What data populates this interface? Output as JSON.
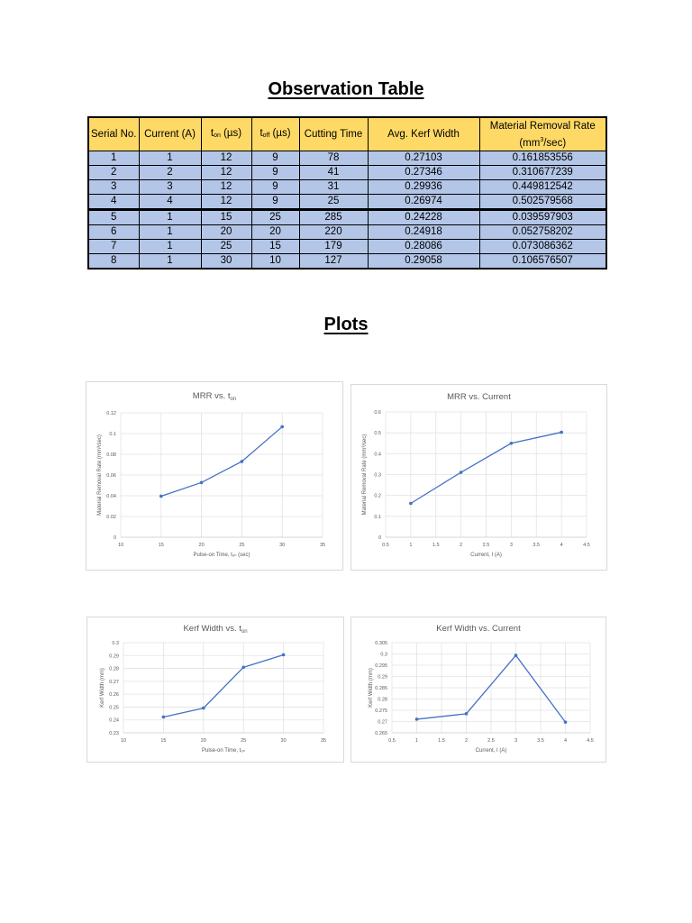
{
  "page": {
    "title": "Observation Table",
    "plots_title": "Plots"
  },
  "table": {
    "headers": [
      {
        "main": "Serial No.",
        "sub": ""
      },
      {
        "main": "Current (A)",
        "sub": ""
      },
      {
        "main": "t",
        "sub": "on",
        "suffix": " (µs)"
      },
      {
        "main": "t",
        "sub": "off",
        "suffix": " (µs)"
      },
      {
        "main": "Cutting Time",
        "sub": ""
      },
      {
        "main": "Avg. Kerf Width",
        "sub": ""
      },
      {
        "main": "Material Removal Rate",
        "line2_pre": "(mm",
        "line2_sup": "3",
        "line2_post": "/sec)"
      }
    ],
    "rows": [
      [
        "1",
        "1",
        "12",
        "9",
        "78",
        "0.27103",
        "0.161853556"
      ],
      [
        "2",
        "2",
        "12",
        "9",
        "41",
        "0.27346",
        "0.310677239"
      ],
      [
        "3",
        "3",
        "12",
        "9",
        "31",
        "0.29936",
        "0.449812542"
      ],
      [
        "4",
        "4",
        "12",
        "9",
        "25",
        "0.26974",
        "0.502579568"
      ],
      [
        "5",
        "1",
        "15",
        "25",
        "285",
        "0.24228",
        "0.039597903"
      ],
      [
        "6",
        "1",
        "20",
        "20",
        "220",
        "0.24918",
        "0.052758202"
      ],
      [
        "7",
        "1",
        "25",
        "15",
        "179",
        "0.28086",
        "0.073086362"
      ],
      [
        "8",
        "1",
        "30",
        "10",
        "127",
        "0.29058",
        "0.106576507"
      ]
    ],
    "colors": {
      "header_bg": "#ffd966",
      "row_bg": "#b4c6e7",
      "border": "#000000"
    }
  },
  "chart_data": [
    {
      "type": "line",
      "title": "MRR vs. t_on",
      "title_main": "MRR vs. t",
      "title_sub": "on",
      "xlabel": "Pulse-on Time, t_on (sec)",
      "ylabel": "Material Removal Rate (mm³/sec)",
      "x": [
        15,
        20,
        25,
        30
      ],
      "y": [
        0.039597903,
        0.052758202,
        0.073086362,
        0.106576507
      ],
      "xlim": [
        10,
        35
      ],
      "ylim": [
        0,
        0.12
      ],
      "xticks": [
        10,
        15,
        20,
        25,
        30,
        35
      ],
      "yticks": [
        "0",
        "0.02",
        "0.04",
        "0.06",
        "0.08",
        "0.1",
        "0.12"
      ],
      "grid": true,
      "legend": "none",
      "color": "#4472c4"
    },
    {
      "type": "line",
      "title": "MRR vs. Current",
      "xlabel": "Current, I (A)",
      "ylabel": "Material Removal Rate (mm³/sec)",
      "x": [
        1,
        2,
        3,
        4
      ],
      "y": [
        0.161853556,
        0.310677239,
        0.449812542,
        0.502579568
      ],
      "xlim": [
        0.5,
        4.5
      ],
      "ylim": [
        0,
        0.6
      ],
      "xticks": [
        "0.5",
        "1",
        "1.5",
        "2",
        "2.5",
        "3",
        "3.5",
        "4",
        "4.5"
      ],
      "yticks": [
        "0",
        "0.1",
        "0.2",
        "0.3",
        "0.4",
        "0.5",
        "0.6"
      ],
      "grid": true,
      "legend": "none",
      "color": "#4472c4"
    },
    {
      "type": "line",
      "title": "Kerf Width vs. t_on",
      "title_main": "Kerf Width vs. t",
      "title_sub": "on",
      "xlabel": "Pulse-on Time, t_on",
      "ylabel": "Kerf Width (mm)",
      "x": [
        15,
        20,
        25,
        30
      ],
      "y": [
        0.24228,
        0.24918,
        0.28086,
        0.29058
      ],
      "xlim": [
        10,
        35
      ],
      "ylim": [
        0.23,
        0.3
      ],
      "xticks": [
        10,
        15,
        20,
        25,
        30,
        35
      ],
      "yticks": [
        "0.23",
        "0.24",
        "0.25",
        "0.26",
        "0.27",
        "0.28",
        "0.29",
        "0.3"
      ],
      "grid": true,
      "legend": "none",
      "color": "#4472c4"
    },
    {
      "type": "line",
      "title": "Kerf Width vs. Current",
      "xlabel": "Current, I (A)",
      "ylabel": "Kerf Width (mm)",
      "x": [
        1,
        2,
        3,
        4
      ],
      "y": [
        0.27103,
        0.27346,
        0.29936,
        0.26974
      ],
      "xlim": [
        0.5,
        4.5
      ],
      "ylim": [
        0.265,
        0.305
      ],
      "xticks": [
        "0.5",
        "1",
        "1.5",
        "2",
        "2.5",
        "3",
        "3.5",
        "4",
        "4.5"
      ],
      "yticks": [
        "0.265",
        "0.27",
        "0.275",
        "0.28",
        "0.285",
        "0.29",
        "0.295",
        "0.3",
        "0.305"
      ],
      "grid": true,
      "legend": "none",
      "color": "#4472c4"
    }
  ]
}
